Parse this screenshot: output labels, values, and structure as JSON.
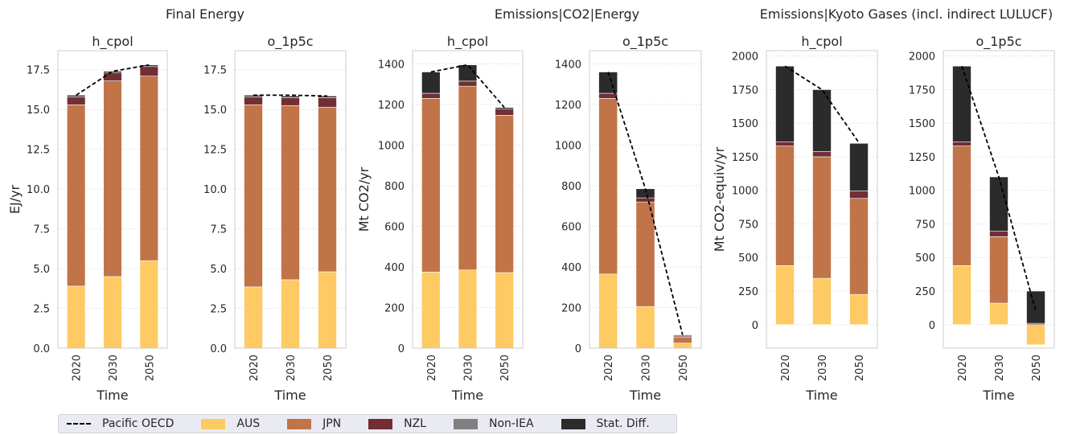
{
  "colors": {
    "AUS": "#fdca63",
    "JPN": "#c17448",
    "NZL": "#722e35",
    "Non-IEA": "#808080",
    "Stat. Diff.": "#2b2b2b",
    "line": "#000000",
    "axes_border": "#cccccc",
    "grid": "#e4e4e4"
  },
  "groups": [
    {
      "title": "Final Energy"
    },
    {
      "title": "Emissions|CO2|Energy"
    },
    {
      "title": "Emissions|Kyoto Gases (incl. indirect LULUCF)"
    }
  ],
  "legend": {
    "items": [
      {
        "label": "Pacific OECD",
        "type": "line"
      },
      {
        "label": "AUS",
        "type": "patch",
        "key": "AUS"
      },
      {
        "label": "JPN",
        "type": "patch",
        "key": "JPN"
      },
      {
        "label": "NZL",
        "type": "patch",
        "key": "NZL"
      },
      {
        "label": "Non-IEA",
        "type": "patch",
        "key": "Non-IEA"
      },
      {
        "label": "Stat. Diff.",
        "type": "patch",
        "key": "Stat. Diff."
      }
    ]
  },
  "chart_data": [
    {
      "type": "bar",
      "stacked": true,
      "title": "h_cpol",
      "xlabel": "Time",
      "ylabel": "EJ/yr",
      "categories": [
        "2020",
        "2030",
        "2050"
      ],
      "ylim": [
        0,
        18.7
      ],
      "yticks": [
        "0.0",
        "2.5",
        "5.0",
        "7.5",
        "10.0",
        "12.5",
        "15.0",
        "17.5"
      ],
      "grid": true,
      "series": [
        {
          "name": "AUS",
          "values": [
            3.9,
            4.5,
            5.5
          ]
        },
        {
          "name": "JPN",
          "values": [
            11.4,
            12.3,
            11.6
          ]
        },
        {
          "name": "NZL",
          "values": [
            0.5,
            0.5,
            0.6
          ]
        },
        {
          "name": "Non-IEA",
          "values": [
            0,
            0,
            0
          ]
        },
        {
          "name": "Stat. Diff.",
          "values": [
            0.1,
            0.1,
            0.1
          ]
        }
      ],
      "line": {
        "name": "Pacific OECD",
        "values": [
          15.9,
          17.4,
          17.8
        ]
      }
    },
    {
      "type": "bar",
      "stacked": true,
      "title": "o_1p5c",
      "xlabel": "Time",
      "ylabel": "",
      "categories": [
        "2020",
        "2030",
        "2050"
      ],
      "ylim": [
        0,
        18.7
      ],
      "yticks": [
        "0.0",
        "2.5",
        "5.0",
        "7.5",
        "10.0",
        "12.5",
        "15.0",
        "17.5"
      ],
      "grid": true,
      "series": [
        {
          "name": "AUS",
          "values": [
            3.85,
            4.3,
            4.8
          ]
        },
        {
          "name": "JPN",
          "values": [
            11.45,
            10.95,
            10.35
          ]
        },
        {
          "name": "NZL",
          "values": [
            0.5,
            0.5,
            0.6
          ]
        },
        {
          "name": "Non-IEA",
          "values": [
            0,
            0,
            0
          ]
        },
        {
          "name": "Stat. Diff.",
          "values": [
            0.1,
            0.1,
            0.1
          ]
        }
      ],
      "line": {
        "name": "Pacific OECD",
        "values": [
          15.9,
          15.9,
          15.85
        ]
      }
    },
    {
      "type": "bar",
      "stacked": true,
      "title": "h_cpol",
      "xlabel": "Time",
      "ylabel": "Mt CO2/yr",
      "categories": [
        "2020",
        "2030",
        "2050"
      ],
      "ylim": [
        0,
        1465
      ],
      "yticks": [
        "0",
        "200",
        "400",
        "600",
        "800",
        "1000",
        "1200",
        "1400"
      ],
      "grid": true,
      "series": [
        {
          "name": "AUS",
          "values": [
            375,
            385,
            372
          ]
        },
        {
          "name": "JPN",
          "values": [
            855,
            905,
            775
          ]
        },
        {
          "name": "NZL",
          "values": [
            25,
            25,
            30
          ]
        },
        {
          "name": "Non-IEA",
          "values": [
            0,
            0,
            0
          ]
        },
        {
          "name": "Stat. Diff.",
          "values": [
            105,
            80,
            8
          ]
        }
      ],
      "line": {
        "name": "Pacific OECD",
        "values": [
          1360,
          1395,
          1185
        ]
      }
    },
    {
      "type": "bar",
      "stacked": true,
      "title": "o_1p5c",
      "xlabel": "Time",
      "ylabel": "",
      "categories": [
        "2020",
        "2030",
        "2050"
      ],
      "ylim": [
        0,
        1465
      ],
      "yticks": [
        "0",
        "200",
        "400",
        "600",
        "800",
        "1000",
        "1200",
        "1400"
      ],
      "grid": true,
      "series": [
        {
          "name": "AUS",
          "values": [
            365,
            205,
            25
          ]
        },
        {
          "name": "JPN",
          "values": [
            865,
            515,
            30
          ]
        },
        {
          "name": "NZL",
          "values": [
            25,
            20,
            5
          ]
        },
        {
          "name": "Non-IEA",
          "values": [
            0,
            0,
            0
          ]
        },
        {
          "name": "Stat. Diff.",
          "values": [
            105,
            45,
            5
          ]
        }
      ],
      "line": {
        "name": "Pacific OECD",
        "values": [
          1360,
          785,
          65
        ]
      }
    },
    {
      "type": "bar",
      "stacked": true,
      "title": "h_cpol",
      "xlabel": "Time",
      "ylabel": "Mt CO2-equiv/yr",
      "categories": [
        "2020",
        "2030",
        "2050"
      ],
      "ylim": [
        -175,
        2040
      ],
      "yticks": [
        "0",
        "250",
        "500",
        "750",
        "1000",
        "1250",
        "1500",
        "1750",
        "2000"
      ],
      "grid": true,
      "series": [
        {
          "name": "AUS",
          "values": [
            440,
            345,
            225
          ]
        },
        {
          "name": "JPN",
          "values": [
            890,
            905,
            715
          ]
        },
        {
          "name": "NZL",
          "values": [
            30,
            40,
            55
          ]
        },
        {
          "name": "Non-IEA",
          "values": [
            0,
            0,
            0
          ]
        },
        {
          "name": "Stat. Diff.",
          "values": [
            565,
            460,
            355
          ]
        }
      ],
      "line": {
        "name": "Pacific OECD",
        "values": [
          1925,
          1750,
          1355
        ]
      }
    },
    {
      "type": "bar",
      "stacked": true,
      "title": "o_1p5c",
      "xlabel": "Time",
      "ylabel": "",
      "categories": [
        "2020",
        "2030",
        "2050"
      ],
      "ylim": [
        -175,
        2040
      ],
      "yticks": [
        "0",
        "250",
        "500",
        "750",
        "1000",
        "1250",
        "1500",
        "1750",
        "2000"
      ],
      "grid": true,
      "series": [
        {
          "name": "AUS",
          "values": [
            440,
            160,
            -150
          ]
        },
        {
          "name": "JPN",
          "values": [
            890,
            495,
            0
          ]
        },
        {
          "name": "NZL",
          "values": [
            30,
            40,
            10
          ]
        },
        {
          "name": "Non-IEA",
          "values": [
            0,
            0,
            0
          ]
        },
        {
          "name": "Stat. Diff.",
          "values": [
            565,
            405,
            240
          ]
        }
      ],
      "line": {
        "name": "Pacific OECD",
        "values": [
          1925,
          1100,
          100
        ]
      }
    }
  ]
}
